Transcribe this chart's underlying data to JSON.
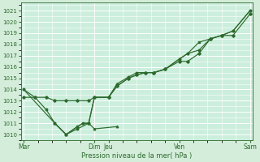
{
  "background_color": "#d4edda",
  "plot_bg_color": "#cceedd",
  "grid_color": "#b8ddd0",
  "line_color": "#2d6a2d",
  "marker_color": "#2d6a2d",
  "xlabel": "Pression niveau de la mer( hPa )",
  "ylim": [
    1009.5,
    1021.7
  ],
  "yticks": [
    1010,
    1011,
    1012,
    1013,
    1014,
    1015,
    1016,
    1017,
    1018,
    1019,
    1020,
    1021
  ],
  "day_labels": [
    "Mar",
    "Dim",
    "Jeu",
    "Ven",
    "Sam"
  ],
  "day_positions": [
    0.0,
    2.5,
    3.0,
    5.5,
    8.0
  ],
  "vline_positions": [
    0.0,
    2.5,
    3.0,
    5.5,
    8.0
  ],
  "series1_x": [
    0.0,
    0.4,
    0.8,
    1.1,
    1.5,
    1.9,
    2.3,
    2.5,
    3.0,
    3.3,
    3.7,
    4.0,
    4.3,
    4.6,
    5.0,
    5.5,
    5.8,
    6.2,
    6.6,
    7.0,
    7.4,
    8.0
  ],
  "series1_y": [
    1014.0,
    1013.3,
    1012.2,
    1011.0,
    1010.0,
    1010.5,
    1011.0,
    1013.3,
    1013.3,
    1014.5,
    1015.1,
    1015.5,
    1015.5,
    1015.5,
    1015.8,
    1016.7,
    1017.2,
    1017.5,
    1018.5,
    1018.8,
    1019.2,
    1021.0
  ],
  "series2_x": [
    0.0,
    0.4,
    0.8,
    1.1,
    1.5,
    1.9,
    2.3,
    2.5,
    3.0,
    3.3,
    3.7,
    4.0,
    4.3,
    4.6,
    5.0,
    5.5,
    5.8,
    6.2,
    6.6,
    7.0,
    7.4,
    8.0
  ],
  "series2_y": [
    1013.3,
    1013.3,
    1013.3,
    1013.0,
    1013.0,
    1013.0,
    1013.0,
    1013.3,
    1013.3,
    1014.3,
    1015.0,
    1015.3,
    1015.5,
    1015.5,
    1015.8,
    1016.5,
    1016.5,
    1017.2,
    1018.5,
    1018.8,
    1018.8,
    1020.7
  ],
  "series3_x": [
    0.0,
    1.1,
    1.5,
    1.9,
    2.1,
    2.3,
    2.5,
    3.0,
    3.3,
    3.7,
    4.0,
    4.3,
    4.6,
    5.0,
    5.5,
    5.8,
    6.2,
    6.6,
    7.0,
    7.4,
    8.0
  ],
  "series3_y": [
    1014.0,
    1011.0,
    1010.0,
    1010.7,
    1011.0,
    1011.0,
    1013.3,
    1013.3,
    1014.3,
    1015.0,
    1015.3,
    1015.5,
    1015.5,
    1015.8,
    1016.7,
    1017.2,
    1018.2,
    1018.5,
    1018.8,
    1019.2,
    1021.0
  ],
  "series4_x": [
    1.1,
    1.5,
    1.9,
    2.1,
    2.3,
    2.5,
    3.3
  ],
  "series4_y": [
    1011.0,
    1010.0,
    1010.7,
    1011.0,
    1011.0,
    1010.5,
    1010.7
  ],
  "xmin": -0.1,
  "xmax": 8.1
}
